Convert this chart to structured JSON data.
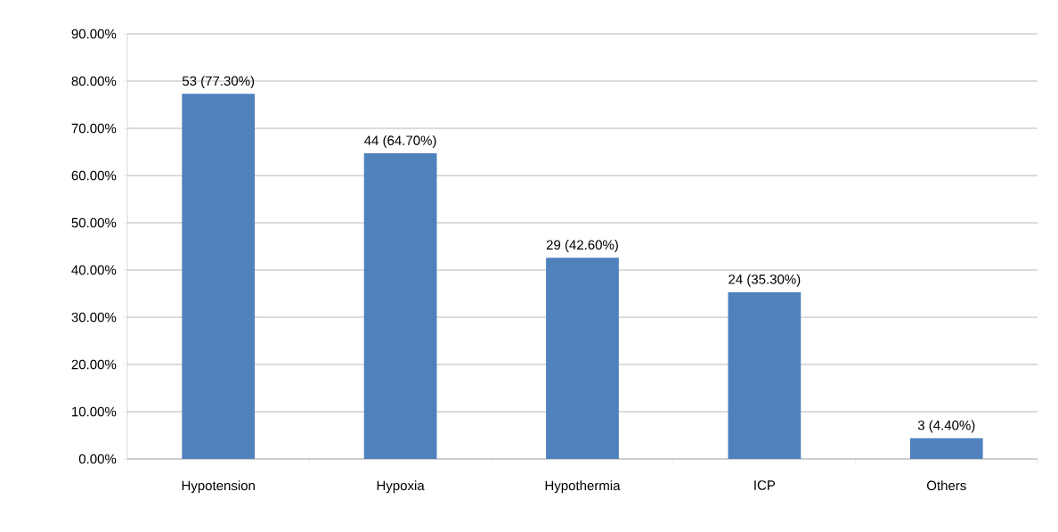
{
  "chart_data": {
    "type": "bar",
    "categories": [
      "Hypotension",
      "Hypoxia",
      "Hypothermia",
      "ICP",
      "Others"
    ],
    "values": [
      77.3,
      64.7,
      42.6,
      35.3,
      4.4
    ],
    "value_labels": [
      "53 (77.30%)",
      "44 (64.70%)",
      "29 (42.60%)",
      "24 (35.30%)",
      "3 (4.40%)"
    ],
    "color": "#4f81bd",
    "ylim": [
      0,
      90
    ],
    "yticks": [
      {
        "value": 0,
        "label": "0.00%"
      },
      {
        "value": 10,
        "label": "10.00%"
      },
      {
        "value": 20,
        "label": "20.00%"
      },
      {
        "value": 30,
        "label": "30.00%"
      },
      {
        "value": 40,
        "label": "40.00%"
      },
      {
        "value": 50,
        "label": "50.00%"
      },
      {
        "value": 60,
        "label": "60.00%"
      },
      {
        "value": 70,
        "label": "70.00%"
      },
      {
        "value": 80,
        "label": "80.00%"
      },
      {
        "value": 90,
        "label": "90.00%"
      }
    ],
    "grid": "y"
  }
}
